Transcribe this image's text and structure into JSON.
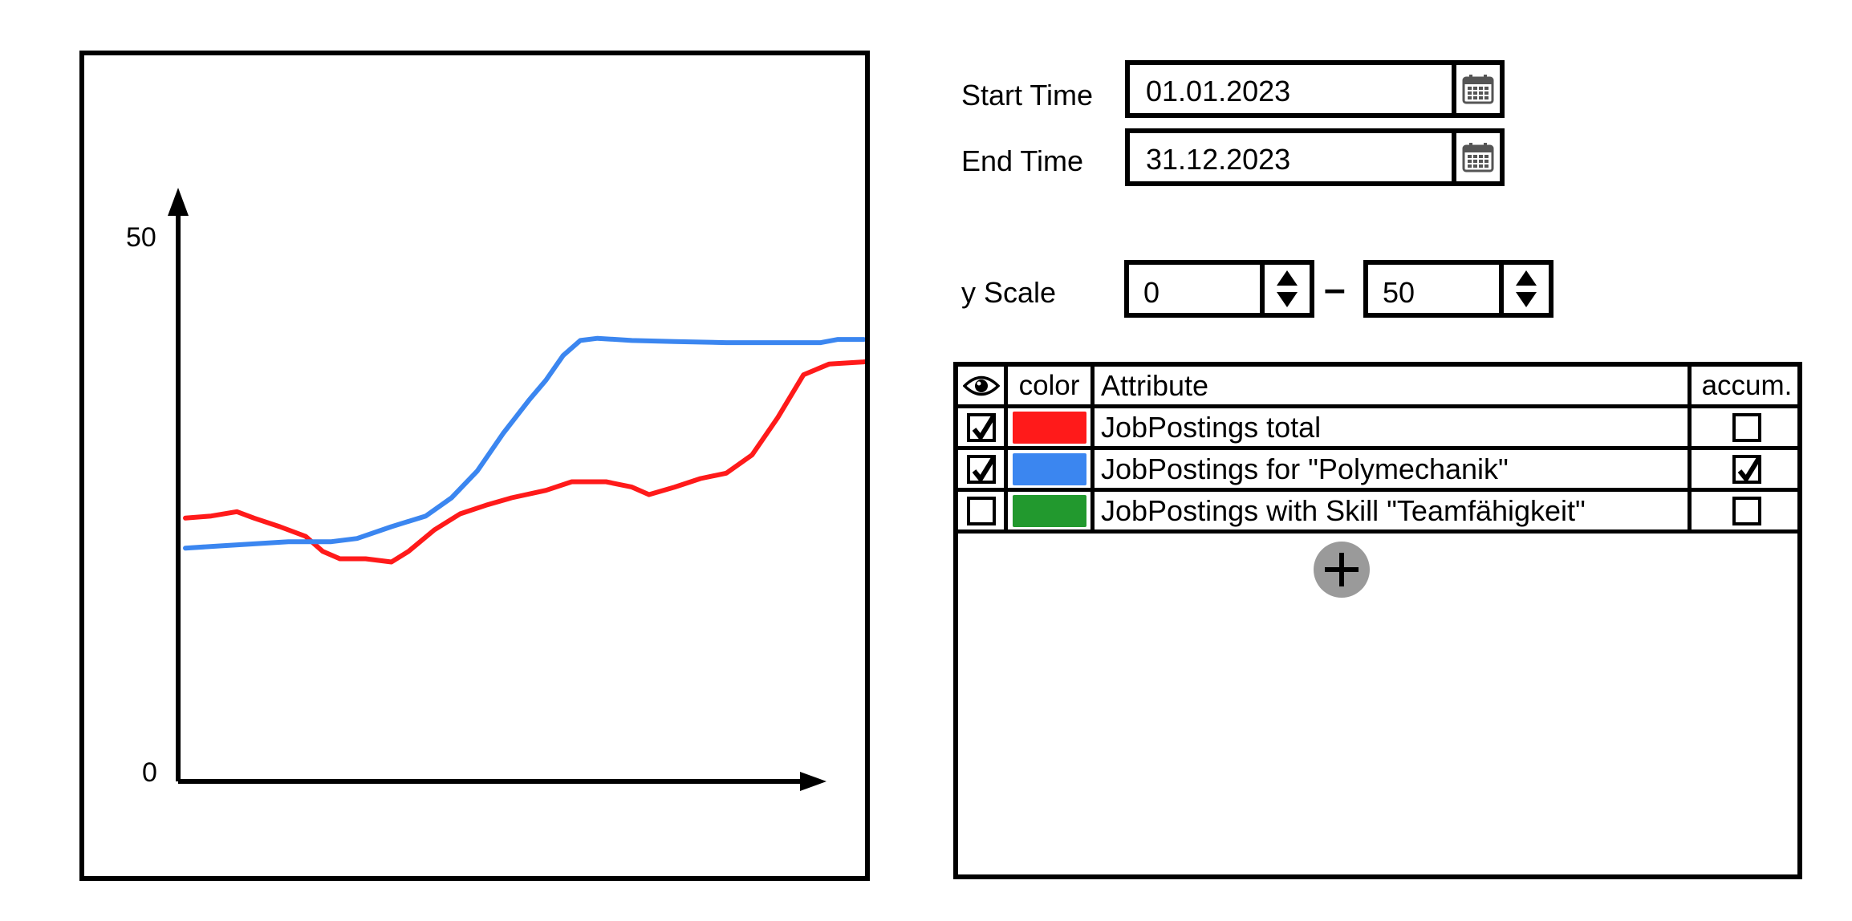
{
  "chart_data": {
    "type": "line",
    "ylim": [
      0,
      50
    ],
    "yticks": [
      "0",
      "50"
    ],
    "series": [
      {
        "color": "#ff1a1a",
        "label_ref": "JobPostings total",
        "points": [
          [
            0,
            24.6
          ],
          [
            3,
            24.8
          ],
          [
            6,
            25.2
          ],
          [
            8,
            24.6
          ],
          [
            11,
            23.8
          ],
          [
            14,
            22.9
          ],
          [
            16,
            21.5
          ],
          [
            18,
            20.8
          ],
          [
            21,
            20.8
          ],
          [
            24,
            20.5
          ],
          [
            26,
            21.5
          ],
          [
            29,
            23.5
          ],
          [
            32,
            25.0
          ],
          [
            35,
            25.8
          ],
          [
            38,
            26.5
          ],
          [
            42,
            27.2
          ],
          [
            45,
            28.0
          ],
          [
            49,
            28.0
          ],
          [
            52,
            27.5
          ],
          [
            54,
            26.8
          ],
          [
            57,
            27.5
          ],
          [
            60,
            28.3
          ],
          [
            63,
            28.8
          ],
          [
            66,
            30.5
          ],
          [
            69,
            34.0
          ],
          [
            72,
            38.0
          ],
          [
            75,
            39.0
          ],
          [
            79,
            39.2
          ],
          [
            80,
            39.3
          ]
        ]
      },
      {
        "color": "#3b86f0",
        "label_ref": "JobPostings for \"Polymechanik\"",
        "points": [
          [
            0,
            21.8
          ],
          [
            4,
            22.0
          ],
          [
            8,
            22.2
          ],
          [
            12,
            22.4
          ],
          [
            17,
            22.4
          ],
          [
            20,
            22.7
          ],
          [
            24,
            23.8
          ],
          [
            28,
            24.8
          ],
          [
            31,
            26.5
          ],
          [
            34,
            29.0
          ],
          [
            37,
            32.5
          ],
          [
            40,
            35.6
          ],
          [
            42,
            37.5
          ],
          [
            44,
            39.8
          ],
          [
            46,
            41.2
          ],
          [
            48,
            41.4
          ],
          [
            52,
            41.2
          ],
          [
            57,
            41.1
          ],
          [
            63,
            41.0
          ],
          [
            70,
            41.0
          ],
          [
            74,
            41.0
          ],
          [
            76,
            41.3
          ],
          [
            79,
            41.3
          ]
        ]
      },
      {
        "color": "#22992e",
        "label_ref": "JobPostings with Skill \"Teamfähigkeit\"",
        "points": []
      }
    ]
  },
  "form": {
    "start_label": "Start Time",
    "start_value": "01.01.2023",
    "end_label": "End Time",
    "end_value": "31.12.2023",
    "yscale_label": "y Scale",
    "yscale_min": "0",
    "yscale_dash": "–",
    "yscale_max": "50"
  },
  "table": {
    "headers": {
      "visible": "eye-icon",
      "color": "color",
      "attribute": "Attribute",
      "accum": "accum."
    },
    "rows": [
      {
        "visible": true,
        "color": "#ff1a1a",
        "attribute": "JobPostings total",
        "accum": false
      },
      {
        "visible": true,
        "color": "#3b86f0",
        "attribute": "JobPostings for \"Polymechanik\"",
        "accum": true
      },
      {
        "visible": false,
        "color": "#22992e",
        "attribute": "JobPostings with Skill \"Teamfähigkeit\"",
        "accum": false
      }
    ],
    "add_icon": "plus-icon"
  }
}
